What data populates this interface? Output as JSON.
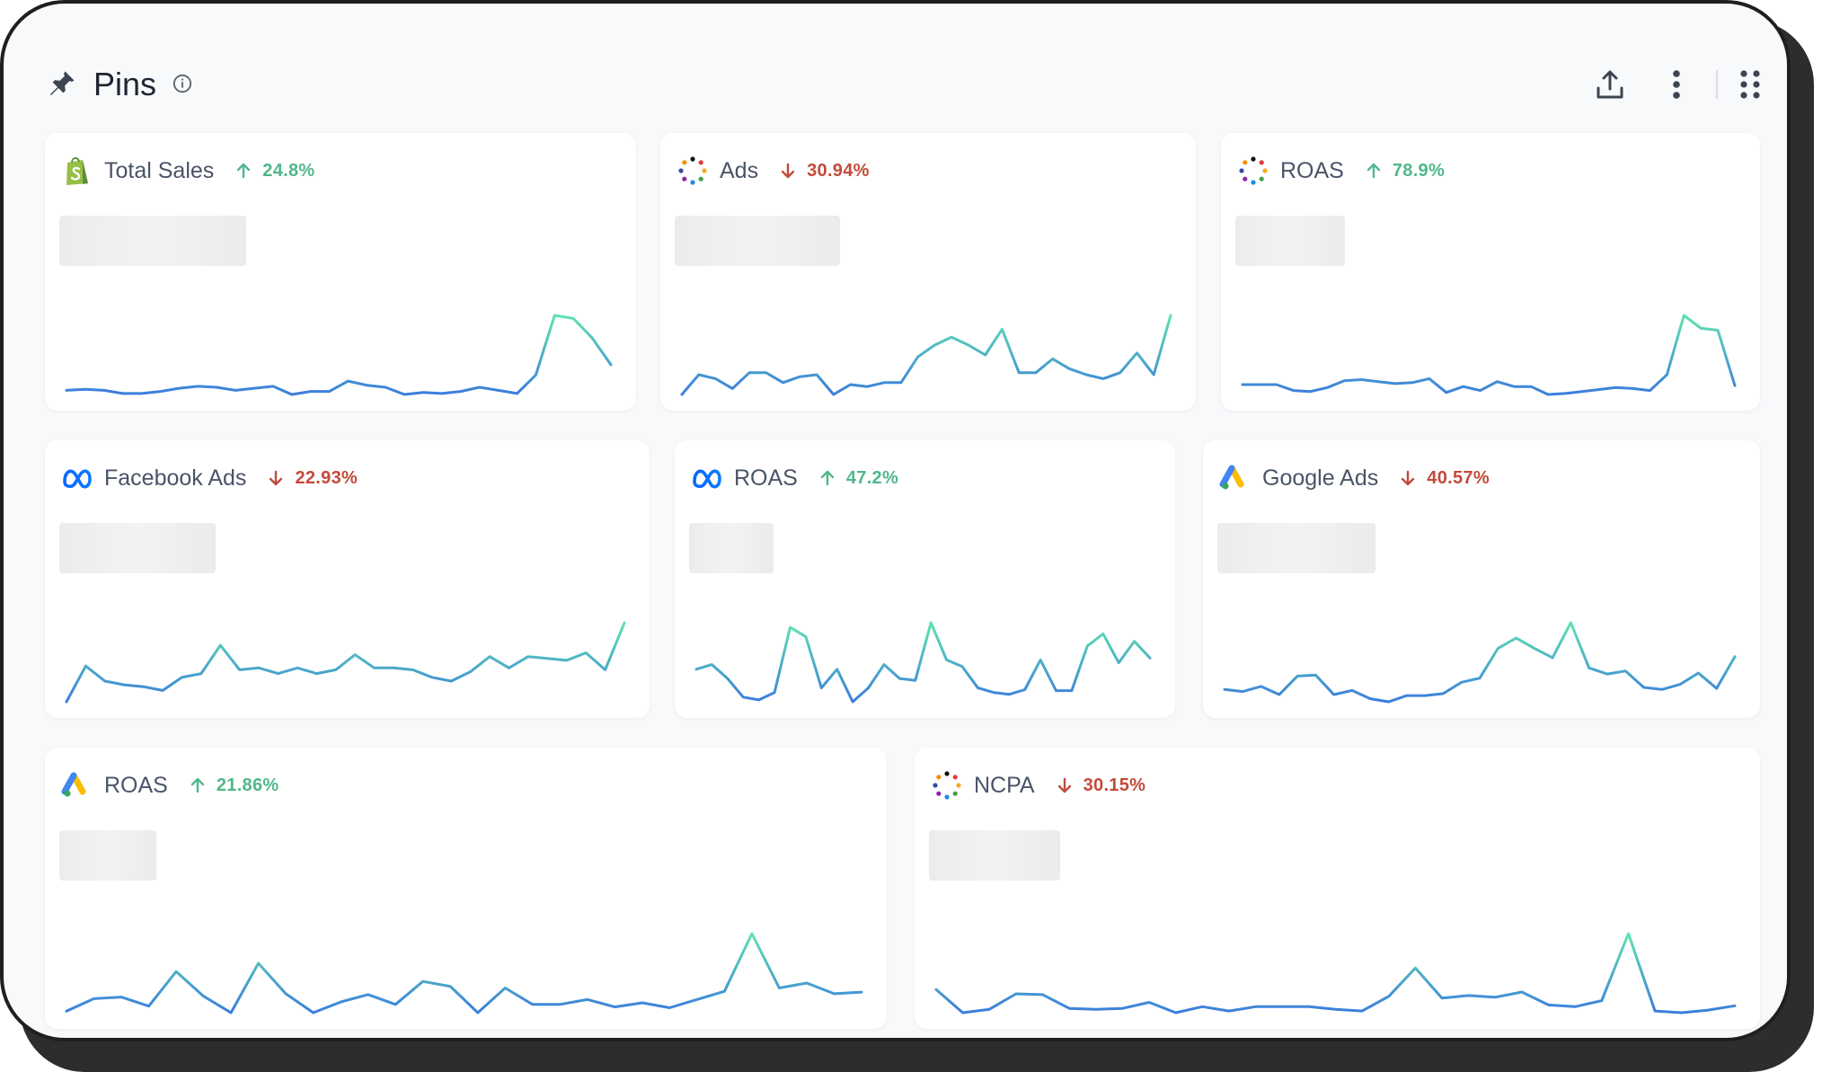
{
  "header": {
    "title": "Pins"
  },
  "icons": {
    "pin": "pin-icon",
    "info": "info-icon",
    "share": "share-icon",
    "more": "more-vertical-icon",
    "apps": "apps-grid-icon"
  },
  "colors": {
    "up": "#4fb88a",
    "down": "#c34a3a",
    "line_start": "#3b7ddd",
    "line_end": "#5fe3b0"
  },
  "cards": [
    {
      "logo": "shopify",
      "title": "Total Sales",
      "trend": "up",
      "change": "24.8%",
      "values": [
        10,
        11,
        10,
        7,
        7,
        9,
        12,
        14,
        13,
        10,
        12,
        14,
        6,
        9,
        9,
        19,
        15,
        13,
        6,
        8,
        7,
        9,
        13,
        10,
        7,
        25,
        83,
        80,
        61,
        35
      ]
    },
    {
      "logo": "dots",
      "title": "Ads",
      "trend": "down",
      "change": "30.94%",
      "values": [
        22,
        32,
        30,
        25,
        33,
        33,
        28,
        31,
        32,
        22,
        27,
        26,
        28,
        28,
        41,
        47,
        51,
        47,
        42,
        55,
        33,
        33,
        40,
        35,
        32,
        30,
        33,
        43,
        32,
        62
      ]
    },
    {
      "logo": "dots",
      "title": "ROAS",
      "trend": "up",
      "change": "78.9%",
      "values": [
        10,
        10,
        10,
        4,
        3,
        7,
        14,
        15,
        13,
        11,
        12,
        16,
        2,
        8,
        4,
        13,
        8,
        8,
        0,
        1,
        3,
        5,
        7,
        6,
        4,
        20,
        80,
        67,
        65,
        9
      ]
    },
    {
      "logo": "meta",
      "title": "Facebook Ads",
      "trend": "down",
      "change": "22.93%",
      "values": [
        15,
        34,
        26,
        24,
        23,
        21,
        28,
        30,
        45,
        32,
        33,
        30,
        33,
        30,
        32,
        40,
        33,
        33,
        32,
        28,
        26,
        31,
        39,
        33,
        39,
        38,
        37,
        41,
        32,
        57
      ]
    },
    {
      "logo": "meta",
      "title": "ROAS",
      "trend": "up",
      "change": "47.2%",
      "values": [
        40,
        45,
        30,
        10,
        7,
        15,
        85,
        75,
        20,
        40,
        5,
        20,
        45,
        30,
        28,
        90,
        50,
        43,
        20,
        15,
        13,
        18,
        50,
        17,
        17,
        65,
        78,
        47,
        70,
        52
      ]
    },
    {
      "logo": "google",
      "title": "Google Ads",
      "trend": "down",
      "change": "40.57%",
      "values": [
        35,
        33,
        38,
        30,
        48,
        49,
        30,
        34,
        26,
        23,
        29,
        29,
        31,
        42,
        46,
        75,
        85,
        75,
        66,
        100,
        56,
        50,
        53,
        37,
        35,
        40,
        51,
        36,
        67
      ]
    },
    {
      "logo": "google",
      "title": "ROAS",
      "trend": "up",
      "change": "21.86%",
      "values": [
        2,
        17,
        19,
        8,
        50,
        20,
        0,
        60,
        23,
        0,
        13,
        22,
        10,
        38,
        32,
        0,
        30,
        10,
        10,
        16,
        7,
        12,
        6,
        16,
        26,
        96,
        30,
        36,
        23,
        25
      ]
    },
    {
      "logo": "dots",
      "title": "NCPA",
      "trend": "down",
      "change": "30.15%",
      "values": [
        35,
        8,
        12,
        30,
        29,
        13,
        12,
        13,
        20,
        8,
        15,
        10,
        15,
        15,
        15,
        12,
        10,
        27,
        60,
        25,
        28,
        26,
        32,
        17,
        15,
        22,
        100,
        10,
        8,
        11,
        16
      ]
    }
  ]
}
